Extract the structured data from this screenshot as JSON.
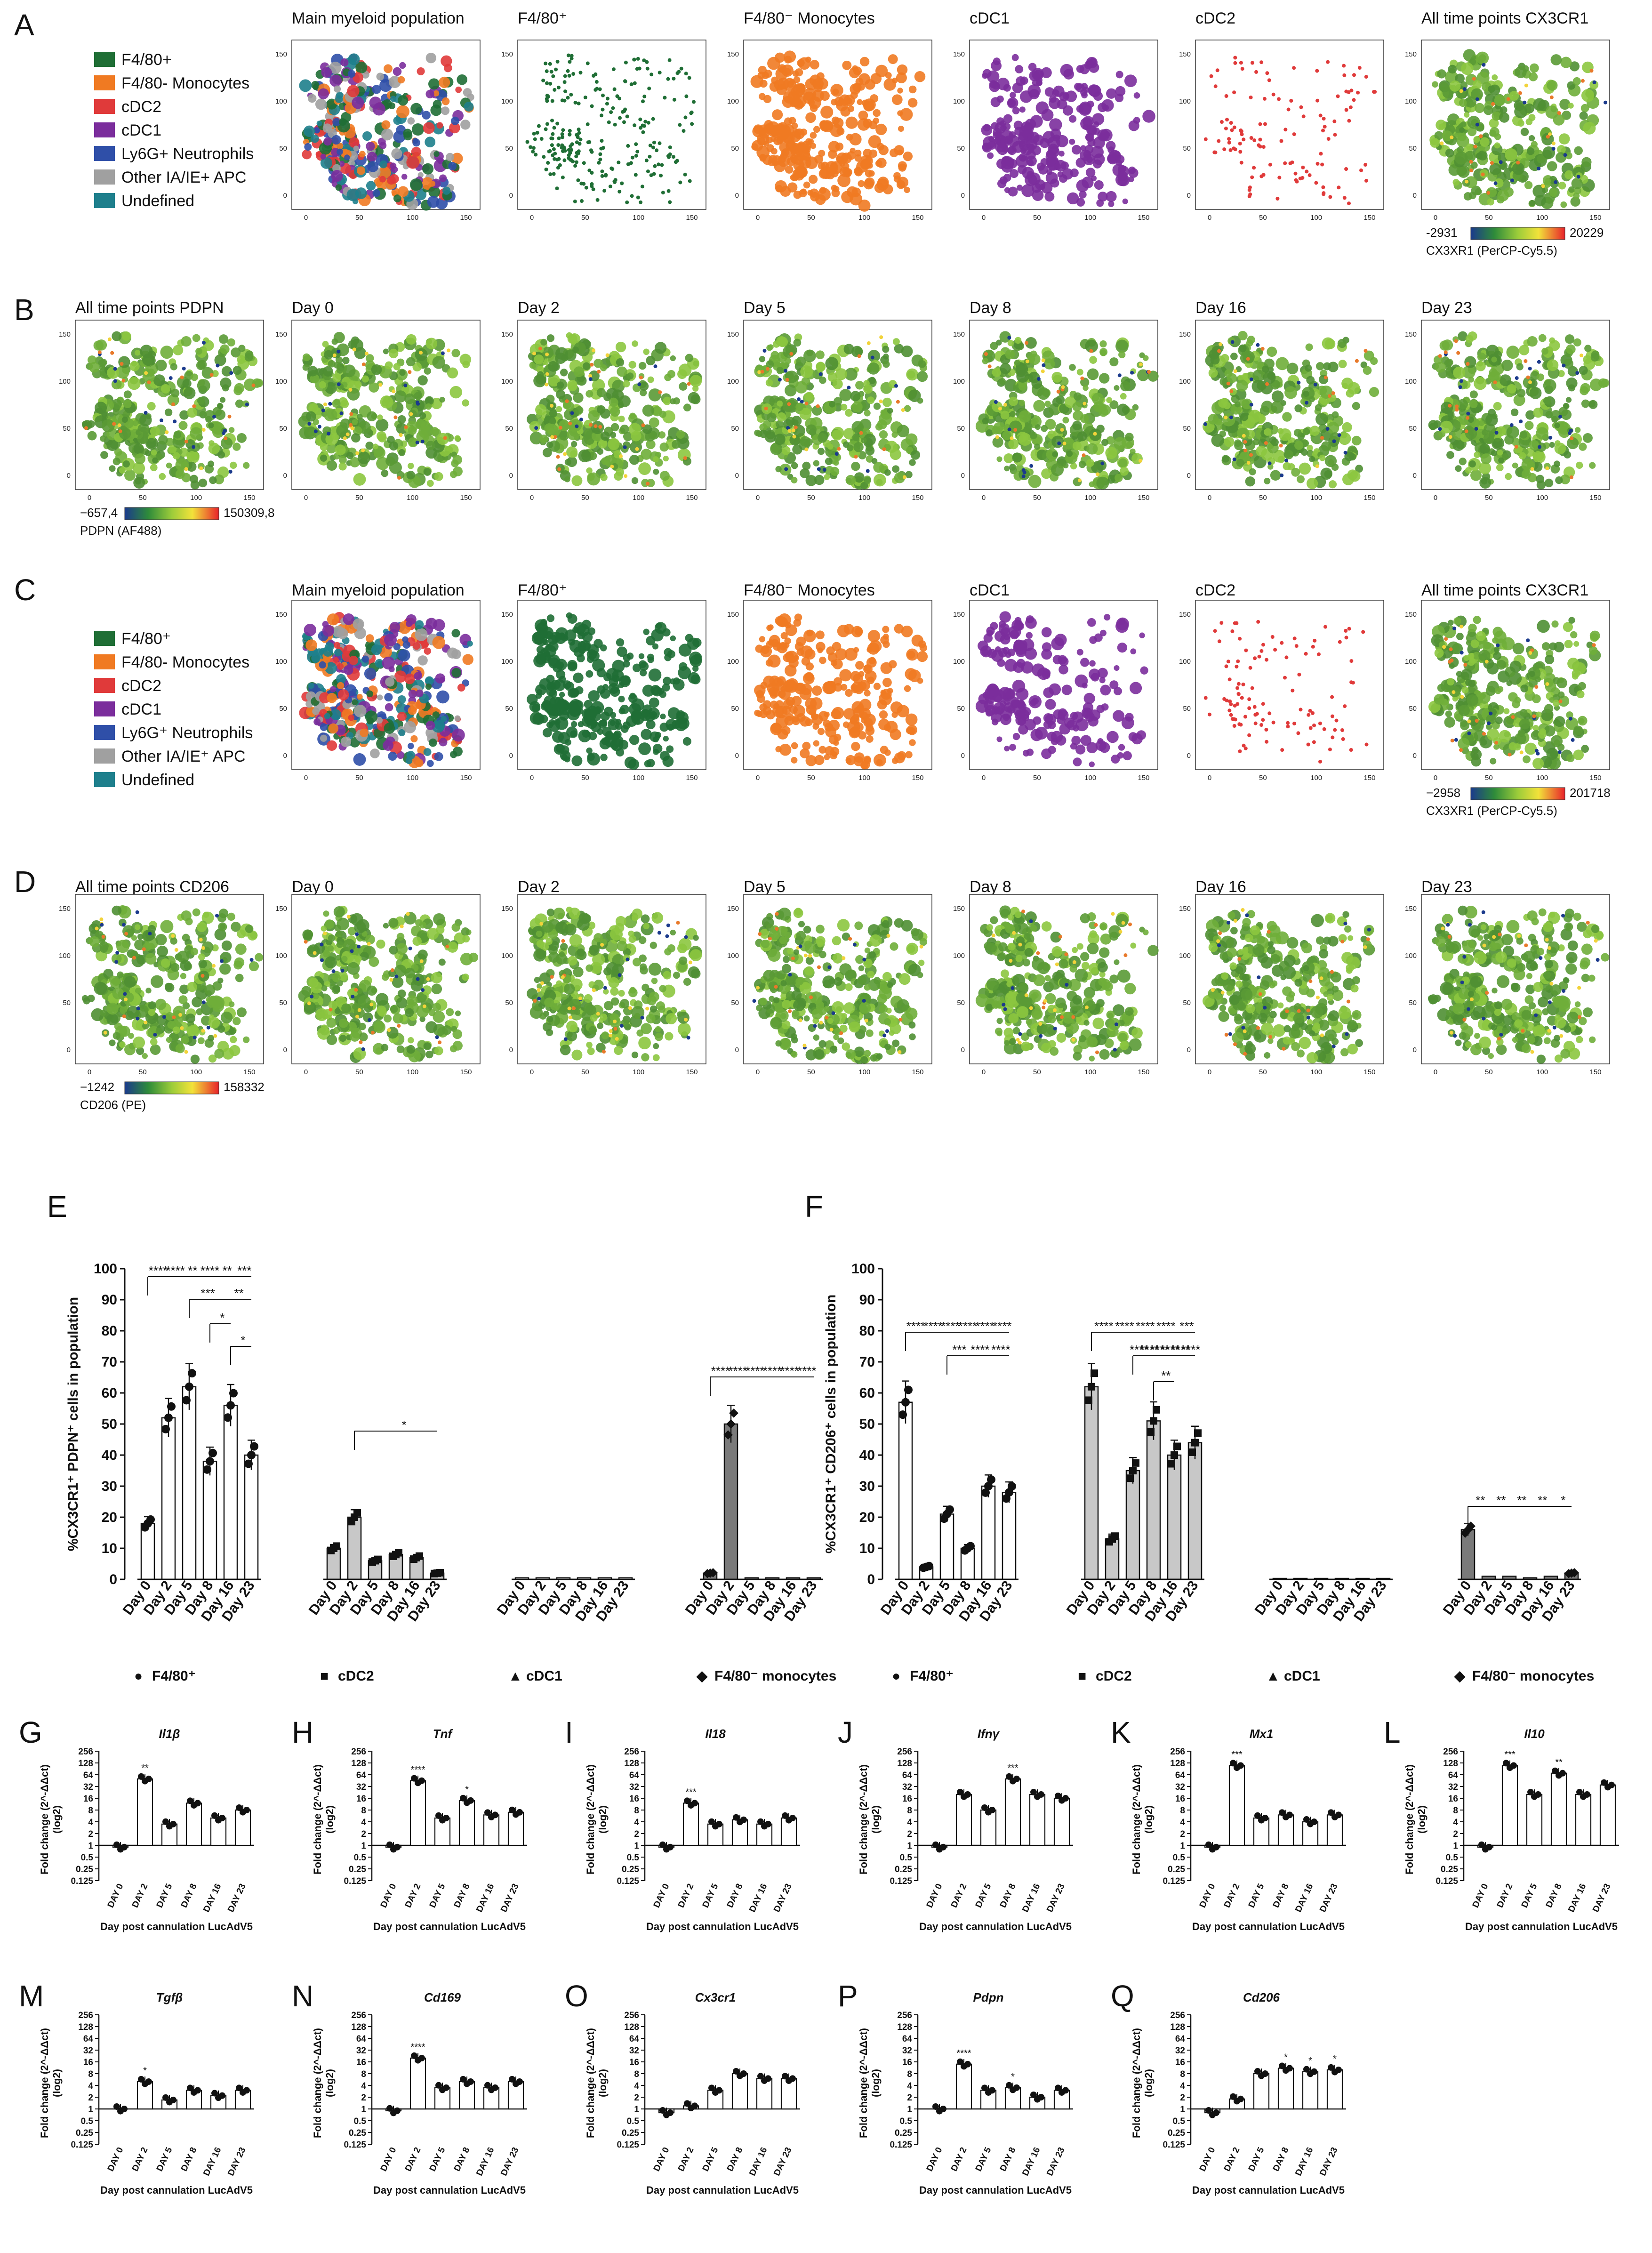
{
  "panels": {
    "A": {
      "label": "A",
      "titles": [
        "Main myeloid population",
        "F4/80⁺",
        "F4/80⁻ Monocytes",
        "cDC1",
        "cDC2",
        "All time points CX3CR1"
      ],
      "colorbar": {
        "min": "-2931",
        "max": "20229",
        "label": "CX3XR1 (PerCP-Cy5.5)"
      }
    },
    "B": {
      "label": "B",
      "titles": [
        "All time points PDPN",
        "Day 0",
        "Day 2",
        "Day 5",
        "Day 8",
        "Day 16",
        "Day 23"
      ],
      "colorbar": {
        "min": "−657,4",
        "max": "150309,8",
        "label": "PDPN (AF488)"
      }
    },
    "C": {
      "label": "C",
      "titles": [
        "Main myeloid population",
        "F4/80⁺",
        "F4/80⁻ Monocytes",
        "cDC1",
        "cDC2",
        "All time points CX3CR1"
      ],
      "colorbar": {
        "min": "−2958",
        "max": "201718",
        "label": "CX3XR1 (PerCP-Cy5.5)"
      }
    },
    "D": {
      "label": "D",
      "titles": [
        "All time points CD206",
        "Day 0",
        "Day 2",
        "Day 5",
        "Day 8",
        "Day 16",
        "Day 23"
      ],
      "colorbar": {
        "min": "−1242",
        "max": "158332",
        "label": "CD206 (PE)"
      }
    },
    "E": {
      "label": "E"
    },
    "F": {
      "label": "F"
    }
  },
  "legendA": [
    {
      "label": "F4/80+",
      "color": "#1f6e35"
    },
    {
      "label": "F4/80- Monocytes",
      "color": "#f07a22"
    },
    {
      "label": "cDC2",
      "color": "#e03a3a"
    },
    {
      "label": "cDC1",
      "color": "#7b2d9c"
    },
    {
      "label": "Ly6G+ Neutrophils",
      "color": "#2f4fa8"
    },
    {
      "label": "Other IA/IE+ APC",
      "color": "#a0a0a0"
    },
    {
      "label": "Undefined",
      "color": "#1e7f8c"
    }
  ],
  "legendC": [
    {
      "label": "F4/80⁺",
      "color": "#1f6e35"
    },
    {
      "label": "F4/80- Monocytes",
      "color": "#f07a22"
    },
    {
      "label": "cDC2",
      "color": "#e03a3a"
    },
    {
      "label": "cDC1",
      "color": "#7b2d9c"
    },
    {
      "label": "Ly6G⁺ Neutrophils",
      "color": "#2f4fa8"
    },
    {
      "label": "Other IA/IE⁺ APC",
      "color": "#a0a0a0"
    },
    {
      "label": "Undefined",
      "color": "#1e7f8c"
    }
  ],
  "tsne_ticks": [
    "0",
    "50",
    "100",
    "150"
  ],
  "chart_data": [
    {
      "type": "bar",
      "panel": "E",
      "ylabel": "%CX3CR1⁺ PDPN⁺ cells in population",
      "ylim": [
        0,
        100
      ],
      "yticks": [
        0,
        10,
        20,
        30,
        40,
        50,
        60,
        70,
        80,
        90,
        100
      ],
      "categories": [
        "Day 0",
        "Day 2",
        "Day 5",
        "Day 8",
        "Day 16",
        "Day 23"
      ],
      "groups": [
        {
          "name": "F4/80⁺",
          "marker": "●",
          "values": [
            18,
            52,
            62,
            38,
            56,
            40
          ]
        },
        {
          "name": "cDC2",
          "marker": "■",
          "values": [
            10,
            20,
            6,
            8,
            7,
            2
          ]
        },
        {
          "name": "cDC1",
          "marker": "▲",
          "values": [
            0.5,
            0.5,
            0.5,
            0.5,
            0.5,
            0.5
          ]
        },
        {
          "name": "F4/80⁻ monocytes",
          "marker": "◆",
          "values": [
            2,
            50,
            0.5,
            0.5,
            0.5,
            0.5
          ]
        }
      ],
      "annotations": [
        "****",
        "****",
        "**",
        "****",
        "**",
        "***",
        "**",
        "*",
        "*",
        "*",
        "****",
        "****",
        "****",
        "****",
        "****",
        "****"
      ]
    },
    {
      "type": "bar",
      "panel": "F",
      "ylabel": "%CX3CR1⁺ CD206⁺ cells in population",
      "ylim": [
        0,
        100
      ],
      "yticks": [
        0,
        10,
        20,
        30,
        40,
        50,
        60,
        70,
        80,
        90,
        100
      ],
      "categories": [
        "Day 0",
        "Day 2",
        "Day 5",
        "Day 8",
        "Day 16",
        "Day 23"
      ],
      "groups": [
        {
          "name": "F4/80⁺",
          "marker": "●",
          "values": [
            57,
            4,
            21,
            10,
            30,
            28
          ]
        },
        {
          "name": "cDC2",
          "marker": "■",
          "values": [
            62,
            13,
            35,
            51,
            40,
            44
          ]
        },
        {
          "name": "cDC1",
          "marker": "▲",
          "values": [
            0.3,
            0.3,
            0.3,
            0.3,
            0.3,
            0.3
          ]
        },
        {
          "name": "F4/80⁻ monocytes",
          "marker": "◆",
          "values": [
            16,
            1,
            1,
            0.5,
            1,
            2
          ]
        }
      ],
      "annotations": [
        "****",
        "****",
        "****",
        "****",
        "****",
        "****",
        "***",
        "****",
        "****",
        "****",
        "****",
        "****",
        "****",
        "***",
        "****",
        "****",
        "****",
        "****",
        "****",
        "****",
        "**",
        "**",
        "**",
        "**",
        "**",
        "*"
      ]
    },
    {
      "type": "bar",
      "panel": "G-Q",
      "ylabel": "Fold change (2^-ΔΔct) (log2)",
      "xlabel": "Day post cannulation LucAdV5",
      "yscale": "log2",
      "ylim": [
        0.125,
        256
      ],
      "yticks": [
        "256",
        "128",
        "64",
        "32",
        "16",
        "8",
        "4",
        "2",
        "1",
        "0.5",
        "0.25",
        "0.125"
      ],
      "categories": [
        "DAY 0",
        "DAY 2",
        "DAY 5",
        "DAY 8",
        "DAY 16",
        "DAY 23"
      ],
      "series": [
        {
          "panel": "G",
          "name": "Il1β",
          "values": [
            0.9,
            50,
            3.5,
            12,
            5,
            8
          ],
          "stars": [
            "",
            "**",
            "",
            "",
            "",
            ""
          ]
        },
        {
          "panel": "H",
          "name": "Tnf",
          "values": [
            0.9,
            45,
            5,
            14,
            6,
            7
          ],
          "stars": [
            "",
            "****",
            "",
            "*",
            "",
            ""
          ]
        },
        {
          "panel": "I",
          "name": "Il18",
          "values": [
            0.9,
            12,
            3.5,
            4.5,
            3.5,
            5
          ],
          "stars": [
            "",
            "***",
            "",
            "",
            "",
            ""
          ]
        },
        {
          "panel": "J",
          "name": "Ifnγ",
          "values": [
            0.9,
            20,
            8,
            50,
            20,
            16
          ],
          "stars": [
            "",
            "",
            "",
            "***",
            "",
            ""
          ]
        },
        {
          "panel": "K",
          "name": "Mx1",
          "values": [
            0.9,
            110,
            5,
            6,
            4,
            6
          ],
          "stars": [
            "",
            "***",
            "",
            "",
            "",
            ""
          ]
        },
        {
          "panel": "L",
          "name": "Il10",
          "values": [
            0.9,
            110,
            20,
            70,
            20,
            35
          ],
          "stars": [
            "",
            "***",
            "",
            "**",
            "",
            ""
          ]
        },
        {
          "panel": "M",
          "name": "Tgfβ",
          "values": [
            1,
            5,
            1.7,
            3,
            2.2,
            3
          ],
          "stars": [
            "",
            "*",
            "",
            "",
            "",
            ""
          ]
        },
        {
          "panel": "N",
          "name": "Cd169",
          "values": [
            0.9,
            20,
            3.5,
            5,
            3.5,
            5
          ],
          "stars": [
            "",
            "****",
            "",
            "",
            "",
            ""
          ]
        },
        {
          "panel": "O",
          "name": "Cx3cr1",
          "values": [
            0.8,
            1.2,
            3,
            8,
            6,
            6
          ],
          "stars": [
            "",
            "",
            "",
            "",
            "",
            ""
          ]
        },
        {
          "panel": "P",
          "name": "Pdpn",
          "values": [
            1,
            14,
            3,
            3.5,
            2,
            3
          ],
          "stars": [
            "",
            "****",
            "",
            "*",
            "",
            ""
          ]
        },
        {
          "panel": "Q",
          "name": "Cd206",
          "values": [
            0.8,
            1.8,
            8,
            11,
            9,
            10
          ],
          "stars": [
            "",
            "",
            "",
            "*",
            "*",
            "*"
          ]
        }
      ],
      "xaxis_title": "Day post cannulation LucAdV5"
    }
  ]
}
